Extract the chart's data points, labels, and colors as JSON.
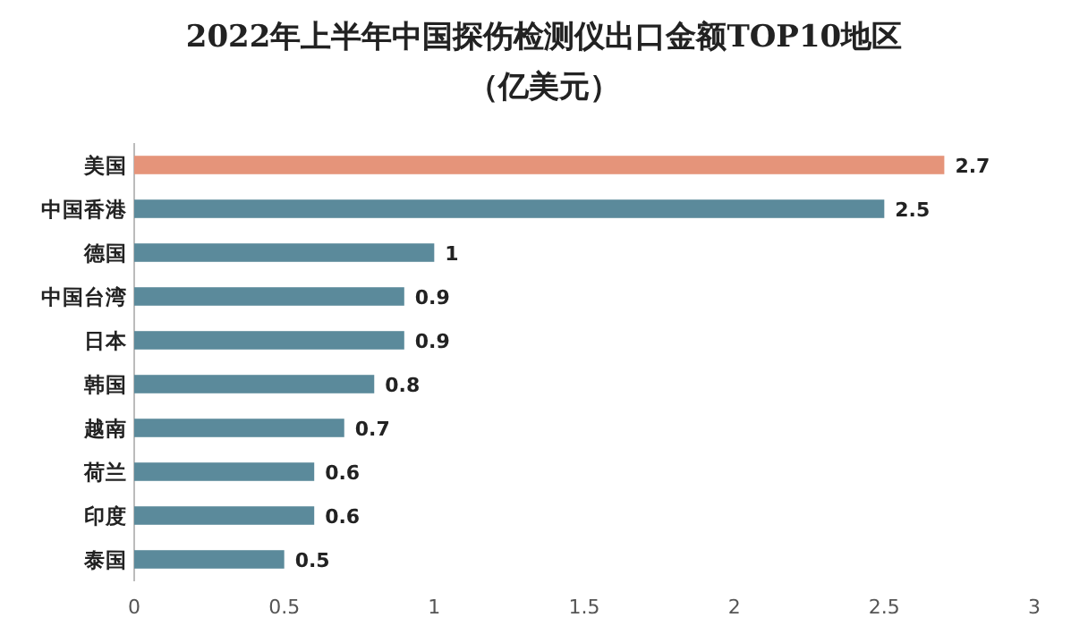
{
  "chart_data": {
    "type": "bar",
    "orientation": "horizontal",
    "title": "2022年上半年中国探伤检测仪出口金额TOP10地区",
    "subtitle": "（亿美元）",
    "categories": [
      "美国",
      "中国香港",
      "德国",
      "中国台湾",
      "日本",
      "韩国",
      "越南",
      "荷兰",
      "印度",
      "泰国"
    ],
    "values": [
      2.7,
      2.5,
      1,
      0.9,
      0.9,
      0.8,
      0.7,
      0.6,
      0.6,
      0.5
    ],
    "colors": [
      "#e5947a",
      "#5b8a9b",
      "#5b8a9b",
      "#5b8a9b",
      "#5b8a9b",
      "#5b8a9b",
      "#5b8a9b",
      "#5b8a9b",
      "#5b8a9b",
      "#5b8a9b"
    ],
    "data_labels": true,
    "xlim": [
      0,
      3
    ],
    "xticks": [
      0,
      0.5,
      1,
      1.5,
      2,
      2.5,
      3
    ]
  }
}
